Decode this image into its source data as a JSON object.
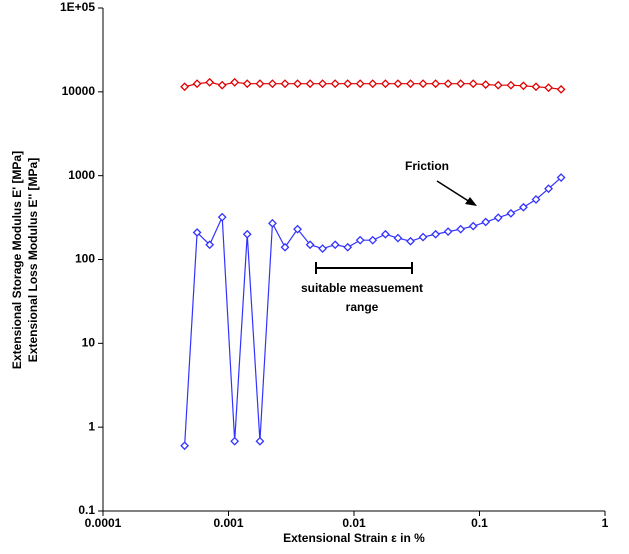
{
  "chart_data": {
    "type": "line",
    "x_label": "Extensional Strain ε in %",
    "y_labels": [
      "Extensional Storage Modulus E' [MPa]",
      "Extensional Loss Modulus E'' [MPa]"
    ],
    "x": [
      0.000447,
      0.000562,
      0.000708,
      0.000891,
      0.00112,
      0.00141,
      0.00178,
      0.00224,
      0.00282,
      0.00355,
      0.00447,
      0.00562,
      0.00708,
      0.00891,
      0.0112,
      0.0141,
      0.0178,
      0.0224,
      0.0282,
      0.0355,
      0.0447,
      0.0562,
      0.0708,
      0.0891,
      0.112,
      0.141,
      0.178,
      0.224,
      0.282,
      0.355,
      0.447
    ],
    "series": [
      {
        "color": "#e00000",
        "values": [
          11500,
          12500,
          13000,
          12000,
          13000,
          12500,
          12500,
          12500,
          12500,
          12500,
          12500,
          12500,
          12500,
          12500,
          12500,
          12500,
          12500,
          12500,
          12500,
          12500,
          12500,
          12500,
          12500,
          12500,
          12200,
          12000,
          12000,
          11800,
          11500,
          11200,
          10700
        ]
      },
      {
        "color": "#3333ff",
        "values": [
          0.6,
          210,
          150,
          320,
          0.68,
          200,
          0.68,
          270,
          140,
          230,
          150,
          135,
          150,
          140,
          170,
          170,
          200,
          180,
          165,
          185,
          200,
          215,
          230,
          250,
          280,
          315,
          355,
          420,
          520,
          700,
          950
        ]
      }
    ],
    "x_log": true,
    "y_log": true,
    "xlim": [
      0.0001,
      1
    ],
    "xticks": [
      0.0001,
      0.001,
      0.01,
      0.1,
      1
    ],
    "ylim": [
      0.1,
      100000
    ],
    "yticks": [
      0.1,
      1,
      10,
      100,
      1000,
      10000,
      {
        "value": 100000,
        "label": "1E+05"
      }
    ],
    "grid": false,
    "annotations": [
      "Friction",
      "suitable measuement",
      "range"
    ]
  }
}
